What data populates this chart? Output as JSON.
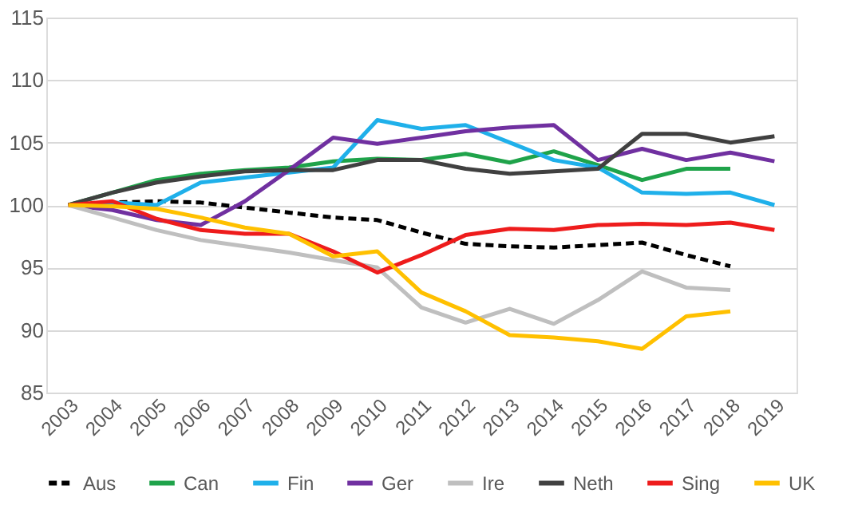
{
  "chart_data": {
    "type": "line",
    "categories": [
      "2003",
      "2004",
      "2005",
      "2006",
      "2007",
      "2008",
      "2009",
      "2010",
      "2011",
      "2012",
      "2013",
      "2014",
      "2015",
      "2016",
      "2017",
      "2018",
      "2019"
    ],
    "ylim": [
      85,
      115
    ],
    "yticks": [
      85,
      90,
      95,
      100,
      105,
      110,
      115
    ],
    "grid": "y",
    "legend": "bottom",
    "marker": "none",
    "series": [
      {
        "name": "Aus",
        "color": "#000000",
        "line_style": "dashed",
        "values": [
          100,
          100.2,
          100.3,
          100.2,
          99.8,
          99.4,
          99,
          98.8,
          97.8,
          96.9,
          96.7,
          96.6,
          96.8,
          97,
          96,
          95.1,
          null
        ]
      },
      {
        "name": "Can",
        "color": "#1fa34a",
        "values": [
          100,
          101,
          102,
          102.5,
          102.8,
          103,
          103.5,
          103.7,
          103.6,
          104.1,
          103.4,
          104.3,
          103.2,
          102,
          102.9,
          102.9,
          null
        ]
      },
      {
        "name": "Fin",
        "color": "#1fb0ea",
        "values": [
          100,
          100.2,
          100,
          101.8,
          102.2,
          102.6,
          103,
          106.8,
          106.1,
          106.4,
          105,
          103.6,
          103,
          101,
          100.9,
          101,
          100
        ]
      },
      {
        "name": "Ger",
        "color": "#7030a0",
        "values": [
          100,
          99.6,
          98.8,
          98.4,
          100.3,
          102.8,
          105.4,
          104.9,
          105.4,
          105.9,
          106.2,
          106.4,
          103.6,
          104.5,
          103.6,
          104.2,
          103.5
        ]
      },
      {
        "name": "Ire",
        "color": "#bfbfbf",
        "values": [
          100,
          99,
          98,
          97.2,
          96.7,
          96.2,
          95.6,
          95,
          91.8,
          90.6,
          91.7,
          90.5,
          92.4,
          94.7,
          93.4,
          93.2,
          null
        ]
      },
      {
        "name": "Neth",
        "color": "#404040",
        "values": [
          100,
          101,
          101.8,
          102.3,
          102.7,
          102.8,
          102.8,
          103.6,
          103.6,
          102.9,
          102.5,
          102.7,
          102.9,
          105.7,
          105.7,
          105,
          105.5
        ]
      },
      {
        "name": "Sing",
        "color": "#ee1c1c",
        "values": [
          100,
          100.3,
          98.9,
          98,
          97.7,
          97.7,
          96.3,
          94.6,
          96,
          97.6,
          98.1,
          98,
          98.4,
          98.5,
          98.4,
          98.6,
          98
        ]
      },
      {
        "name": "UK",
        "color": "#ffc000",
        "values": [
          100,
          99.9,
          99.7,
          99,
          98.2,
          97.7,
          95.9,
          96.3,
          93,
          91.5,
          89.6,
          89.4,
          89.1,
          88.5,
          91.1,
          91.5,
          null
        ]
      }
    ]
  }
}
